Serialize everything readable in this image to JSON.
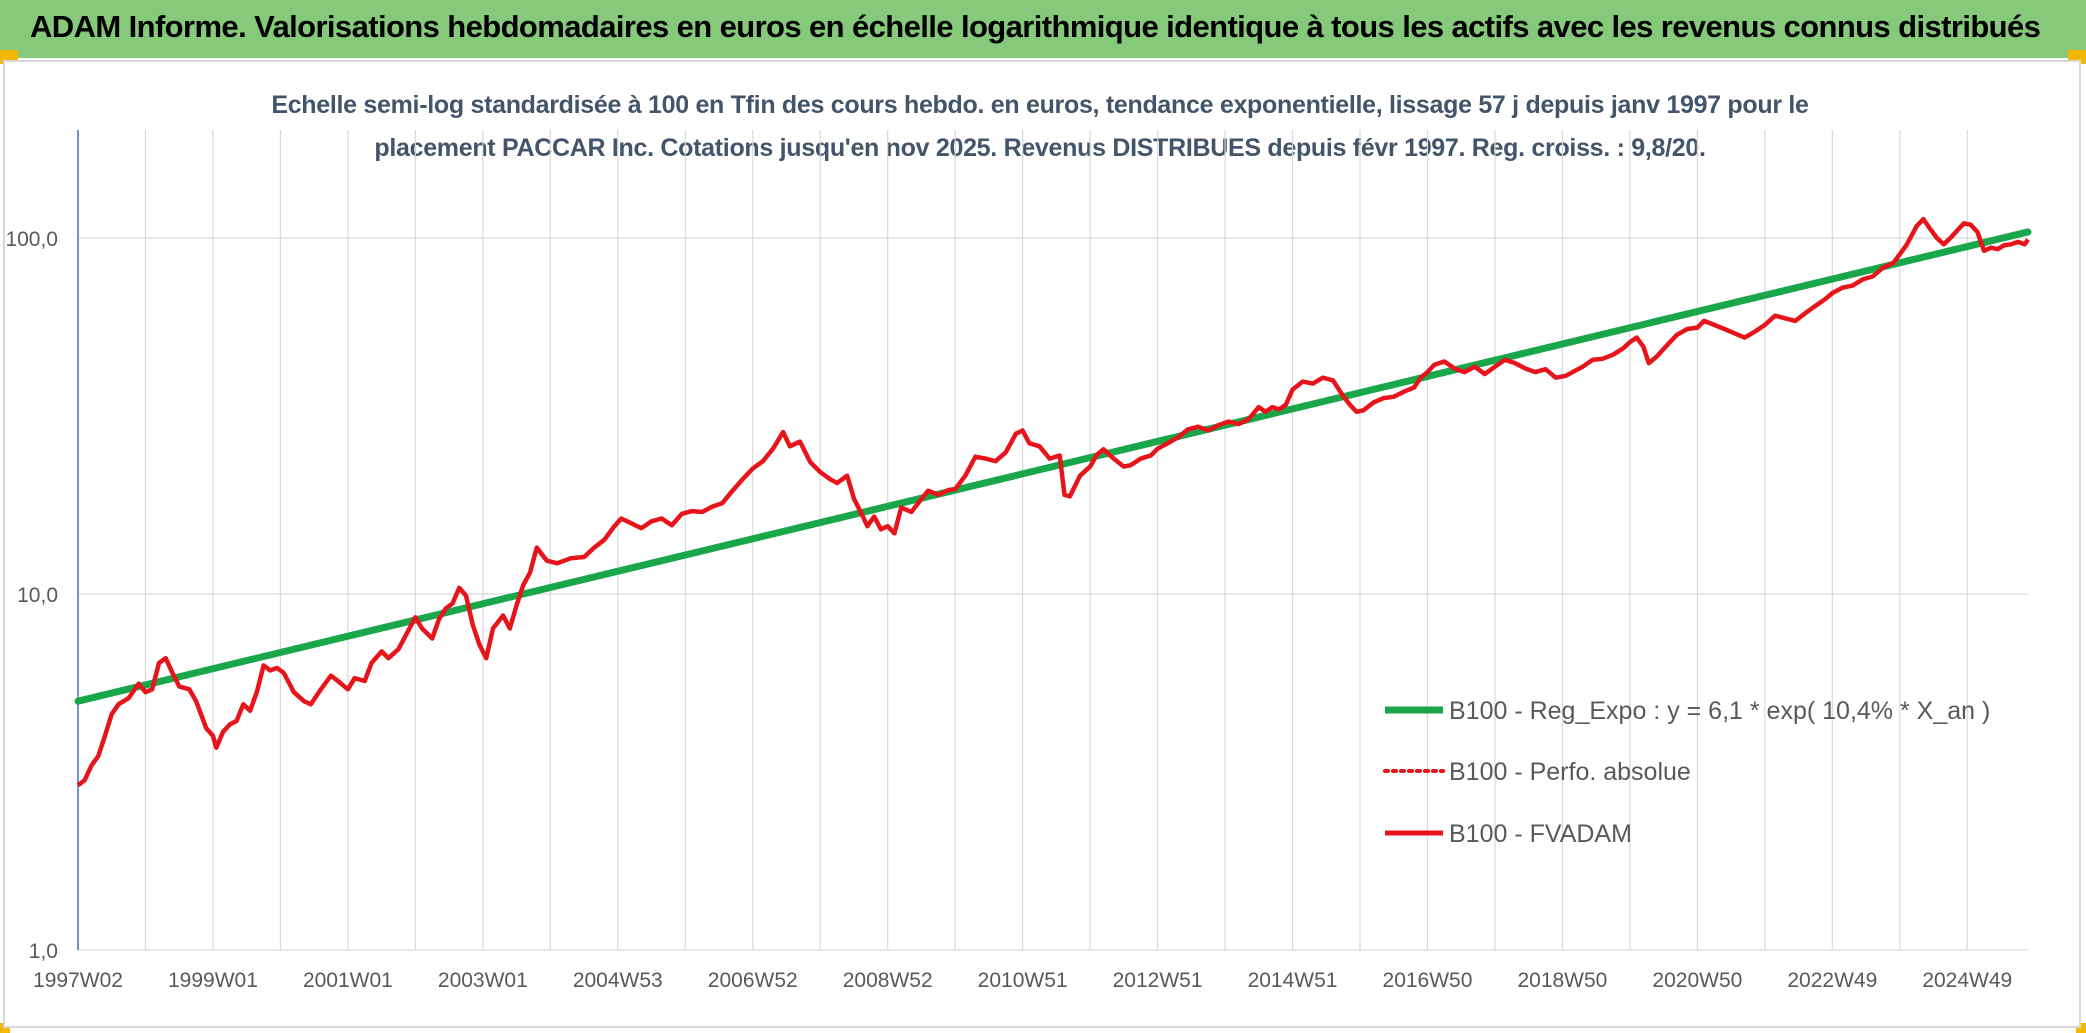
{
  "header": {
    "title": "ADAM Informe. Valorisations hebdomadaires en euros en échelle logarithmique identique à tous les actifs avec les revenus connus distribués"
  },
  "colors": {
    "header_bg": "#86c97a",
    "accent_corner": "#f2b705",
    "subtitle_text": "#44546a",
    "trend_line": "#1aa64a",
    "price_line": "#e8141b",
    "axis": "#4472c4"
  },
  "chart_data": {
    "type": "line",
    "title_line1": "Echelle semi-log standardisée à 100 en Tfin des cours hebdo. en euros, tendance exponentielle, lissage 57 j depuis janv 1997 pour le",
    "title_line2": "placement PACCAR Inc. Cotations jusqu'en nov 2025. Revenus DISTRIBUES depuis févr 1997. Reg. croiss. : 9,8/20.",
    "y_scale": "log",
    "ylim": [
      1,
      180
    ],
    "y_ticks": [
      {
        "value": 1,
        "label": "1,0"
      },
      {
        "value": 10,
        "label": "10,0"
      },
      {
        "value": 100,
        "label": "100,0"
      }
    ],
    "xlim": [
      1997.0,
      2025.9
    ],
    "x_ticks": [
      {
        "value": 1997.0,
        "label": "1997W02"
      },
      {
        "value": 1999.0,
        "label": "1999W01"
      },
      {
        "value": 2001.0,
        "label": "2001W01"
      },
      {
        "value": 2003.0,
        "label": "2003W01"
      },
      {
        "value": 2005.0,
        "label": "2004W53"
      },
      {
        "value": 2007.0,
        "label": "2006W52"
      },
      {
        "value": 2009.0,
        "label": "2008W52"
      },
      {
        "value": 2011.0,
        "label": "2010W51"
      },
      {
        "value": 2013.0,
        "label": "2012W51"
      },
      {
        "value": 2015.0,
        "label": "2014W51"
      },
      {
        "value": 2017.0,
        "label": "2016W50"
      },
      {
        "value": 2019.0,
        "label": "2018W50"
      },
      {
        "value": 2021.0,
        "label": "2020W50"
      },
      {
        "value": 2023.0,
        "label": "2022W49"
      },
      {
        "value": 2025.0,
        "label": "2024W49"
      }
    ],
    "grid": true,
    "legend_position": "bottom-right",
    "series": [
      {
        "name": "B100 - Reg_Expo : y = 6,1 * exp( 10,4% *  X_an )",
        "style": "solid-thick",
        "color": "#1aa64a",
        "points": [
          [
            1997.0,
            5.0
          ],
          [
            2025.9,
            104
          ]
        ]
      },
      {
        "name": "B100 - Perfo. absolue",
        "style": "dotted",
        "color": "#e8141b",
        "points": []
      },
      {
        "name": "B100 - FVADAM",
        "style": "solid",
        "color": "#e8141b",
        "points": [
          [
            1997.0,
            2.9
          ],
          [
            1997.1,
            3.0
          ],
          [
            1997.2,
            3.3
          ],
          [
            1997.3,
            3.5
          ],
          [
            1997.4,
            4.0
          ],
          [
            1997.5,
            4.6
          ],
          [
            1997.6,
            4.9
          ],
          [
            1997.75,
            5.1
          ],
          [
            1997.9,
            5.6
          ],
          [
            1998.0,
            5.3
          ],
          [
            1998.1,
            5.4
          ],
          [
            1998.2,
            6.4
          ],
          [
            1998.3,
            6.6
          ],
          [
            1998.4,
            6.0
          ],
          [
            1998.5,
            5.5
          ],
          [
            1998.65,
            5.4
          ],
          [
            1998.75,
            5.0
          ],
          [
            1998.9,
            4.2
          ],
          [
            1999.0,
            4.0
          ],
          [
            1999.05,
            3.7
          ],
          [
            1999.15,
            4.1
          ],
          [
            1999.25,
            4.3
          ],
          [
            1999.35,
            4.4
          ],
          [
            1999.45,
            4.9
          ],
          [
            1999.55,
            4.7
          ],
          [
            1999.65,
            5.3
          ],
          [
            1999.75,
            6.3
          ],
          [
            1999.85,
            6.1
          ],
          [
            1999.95,
            6.2
          ],
          [
            2000.05,
            6.0
          ],
          [
            2000.2,
            5.3
          ],
          [
            2000.35,
            5.0
          ],
          [
            2000.45,
            4.9
          ],
          [
            2000.6,
            5.4
          ],
          [
            2000.75,
            5.9
          ],
          [
            2000.85,
            5.7
          ],
          [
            2001.0,
            5.4
          ],
          [
            2001.1,
            5.8
          ],
          [
            2001.25,
            5.7
          ],
          [
            2001.35,
            6.4
          ],
          [
            2001.5,
            6.9
          ],
          [
            2001.6,
            6.6
          ],
          [
            2001.75,
            7.0
          ],
          [
            2001.85,
            7.6
          ],
          [
            2002.0,
            8.6
          ],
          [
            2002.1,
            8.0
          ],
          [
            2002.25,
            7.5
          ],
          [
            2002.35,
            8.5
          ],
          [
            2002.45,
            9.1
          ],
          [
            2002.55,
            9.4
          ],
          [
            2002.65,
            10.4
          ],
          [
            2002.75,
            9.9
          ],
          [
            2002.85,
            8.2
          ],
          [
            2002.95,
            7.2
          ],
          [
            2003.05,
            6.6
          ],
          [
            2003.15,
            8.0
          ],
          [
            2003.3,
            8.7
          ],
          [
            2003.4,
            8.0
          ],
          [
            2003.5,
            9.3
          ],
          [
            2003.6,
            10.6
          ],
          [
            2003.7,
            11.5
          ],
          [
            2003.8,
            13.5
          ],
          [
            2003.95,
            12.4
          ],
          [
            2004.1,
            12.2
          ],
          [
            2004.3,
            12.6
          ],
          [
            2004.5,
            12.7
          ],
          [
            2004.65,
            13.5
          ],
          [
            2004.8,
            14.2
          ],
          [
            2004.95,
            15.5
          ],
          [
            2005.05,
            16.3
          ],
          [
            2005.2,
            15.8
          ],
          [
            2005.35,
            15.3
          ],
          [
            2005.5,
            16.0
          ],
          [
            2005.65,
            16.3
          ],
          [
            2005.8,
            15.6
          ],
          [
            2005.95,
            16.8
          ],
          [
            2006.1,
            17.1
          ],
          [
            2006.25,
            17.0
          ],
          [
            2006.4,
            17.6
          ],
          [
            2006.55,
            18.0
          ],
          [
            2006.7,
            19.5
          ],
          [
            2006.85,
            21.0
          ],
          [
            2007.0,
            22.5
          ],
          [
            2007.15,
            23.6
          ],
          [
            2007.3,
            25.6
          ],
          [
            2007.45,
            28.5
          ],
          [
            2007.55,
            26.0
          ],
          [
            2007.7,
            26.8
          ],
          [
            2007.85,
            23.5
          ],
          [
            2008.0,
            22.0
          ],
          [
            2008.15,
            21.0
          ],
          [
            2008.25,
            20.5
          ],
          [
            2008.4,
            21.5
          ],
          [
            2008.5,
            18.5
          ],
          [
            2008.6,
            17.0
          ],
          [
            2008.7,
            15.5
          ],
          [
            2008.8,
            16.5
          ],
          [
            2008.9,
            15.2
          ],
          [
            2009.0,
            15.5
          ],
          [
            2009.1,
            14.8
          ],
          [
            2009.2,
            17.5
          ],
          [
            2009.35,
            17.0
          ],
          [
            2009.5,
            18.5
          ],
          [
            2009.6,
            19.5
          ],
          [
            2009.75,
            19.0
          ],
          [
            2009.9,
            19.6
          ],
          [
            2010.0,
            19.7
          ],
          [
            2010.15,
            21.5
          ],
          [
            2010.3,
            24.3
          ],
          [
            2010.45,
            24.0
          ],
          [
            2010.6,
            23.6
          ],
          [
            2010.75,
            25.0
          ],
          [
            2010.9,
            28.2
          ],
          [
            2011.0,
            28.8
          ],
          [
            2011.1,
            26.5
          ],
          [
            2011.25,
            26.0
          ],
          [
            2011.4,
            24.0
          ],
          [
            2011.55,
            24.5
          ],
          [
            2011.62,
            19.0
          ],
          [
            2011.7,
            18.8
          ],
          [
            2011.85,
            21.5
          ],
          [
            2012.0,
            22.8
          ],
          [
            2012.1,
            24.6
          ],
          [
            2012.2,
            25.5
          ],
          [
            2012.35,
            24.0
          ],
          [
            2012.5,
            22.8
          ],
          [
            2012.6,
            23.0
          ],
          [
            2012.75,
            24.0
          ],
          [
            2012.9,
            24.5
          ],
          [
            2013.0,
            25.6
          ],
          [
            2013.15,
            26.5
          ],
          [
            2013.3,
            27.5
          ],
          [
            2013.45,
            29.0
          ],
          [
            2013.6,
            29.5
          ],
          [
            2013.75,
            28.8
          ],
          [
            2013.9,
            29.8
          ],
          [
            2014.05,
            30.5
          ],
          [
            2014.2,
            30.0
          ],
          [
            2014.35,
            31.0
          ],
          [
            2014.5,
            33.5
          ],
          [
            2014.6,
            32.5
          ],
          [
            2014.7,
            33.5
          ],
          [
            2014.8,
            33.0
          ],
          [
            2014.9,
            34.0
          ],
          [
            2015.0,
            37.5
          ],
          [
            2015.15,
            39.5
          ],
          [
            2015.3,
            39.0
          ],
          [
            2015.45,
            40.5
          ],
          [
            2015.6,
            39.8
          ],
          [
            2015.75,
            36.0
          ],
          [
            2015.85,
            34.0
          ],
          [
            2015.95,
            32.5
          ],
          [
            2016.05,
            32.8
          ],
          [
            2016.2,
            34.5
          ],
          [
            2016.35,
            35.5
          ],
          [
            2016.5,
            35.8
          ],
          [
            2016.65,
            37.0
          ],
          [
            2016.8,
            38.0
          ],
          [
            2016.9,
            40.5
          ],
          [
            2017.0,
            42.0
          ],
          [
            2017.1,
            44.0
          ],
          [
            2017.25,
            45.0
          ],
          [
            2017.4,
            43.0
          ],
          [
            2017.55,
            42.0
          ],
          [
            2017.7,
            43.5
          ],
          [
            2017.85,
            41.5
          ],
          [
            2018.0,
            43.5
          ],
          [
            2018.15,
            45.5
          ],
          [
            2018.3,
            44.5
          ],
          [
            2018.45,
            43.0
          ],
          [
            2018.6,
            42.0
          ],
          [
            2018.75,
            42.8
          ],
          [
            2018.9,
            40.5
          ],
          [
            2019.05,
            41.0
          ],
          [
            2019.2,
            42.5
          ],
          [
            2019.3,
            43.5
          ],
          [
            2019.45,
            45.5
          ],
          [
            2019.6,
            45.8
          ],
          [
            2019.75,
            47.0
          ],
          [
            2019.9,
            49.0
          ],
          [
            2020.0,
            51.0
          ],
          [
            2020.1,
            52.5
          ],
          [
            2020.2,
            49.5
          ],
          [
            2020.28,
            44.5
          ],
          [
            2020.4,
            46.5
          ],
          [
            2020.55,
            50.0
          ],
          [
            2020.7,
            53.5
          ],
          [
            2020.85,
            55.5
          ],
          [
            2021.0,
            56.0
          ],
          [
            2021.1,
            58.5
          ],
          [
            2021.25,
            57.0
          ],
          [
            2021.4,
            55.5
          ],
          [
            2021.55,
            54.0
          ],
          [
            2021.7,
            52.5
          ],
          [
            2021.85,
            54.5
          ],
          [
            2022.0,
            57.0
          ],
          [
            2022.15,
            60.5
          ],
          [
            2022.3,
            59.5
          ],
          [
            2022.45,
            58.5
          ],
          [
            2022.6,
            61.5
          ],
          [
            2022.75,
            64.5
          ],
          [
            2022.9,
            67.5
          ],
          [
            2023.0,
            70.0
          ],
          [
            2023.15,
            72.5
          ],
          [
            2023.3,
            73.5
          ],
          [
            2023.45,
            76.5
          ],
          [
            2023.6,
            78.0
          ],
          [
            2023.75,
            82.5
          ],
          [
            2023.9,
            85.0
          ],
          [
            2024.0,
            90.0
          ],
          [
            2024.1,
            95.5
          ],
          [
            2024.25,
            108
          ],
          [
            2024.35,
            113
          ],
          [
            2024.45,
            106
          ],
          [
            2024.55,
            100
          ],
          [
            2024.65,
            96.0
          ],
          [
            2024.75,
            100
          ],
          [
            2024.85,
            105
          ],
          [
            2024.95,
            110
          ],
          [
            2025.05,
            109
          ],
          [
            2025.15,
            104
          ],
          [
            2025.25,
            92.0
          ],
          [
            2025.35,
            94.0
          ],
          [
            2025.45,
            93.0
          ],
          [
            2025.55,
            95.5
          ],
          [
            2025.65,
            96.0
          ],
          [
            2025.75,
            97.5
          ],
          [
            2025.85,
            96.0
          ],
          [
            2025.9,
            99.0
          ]
        ]
      }
    ]
  }
}
